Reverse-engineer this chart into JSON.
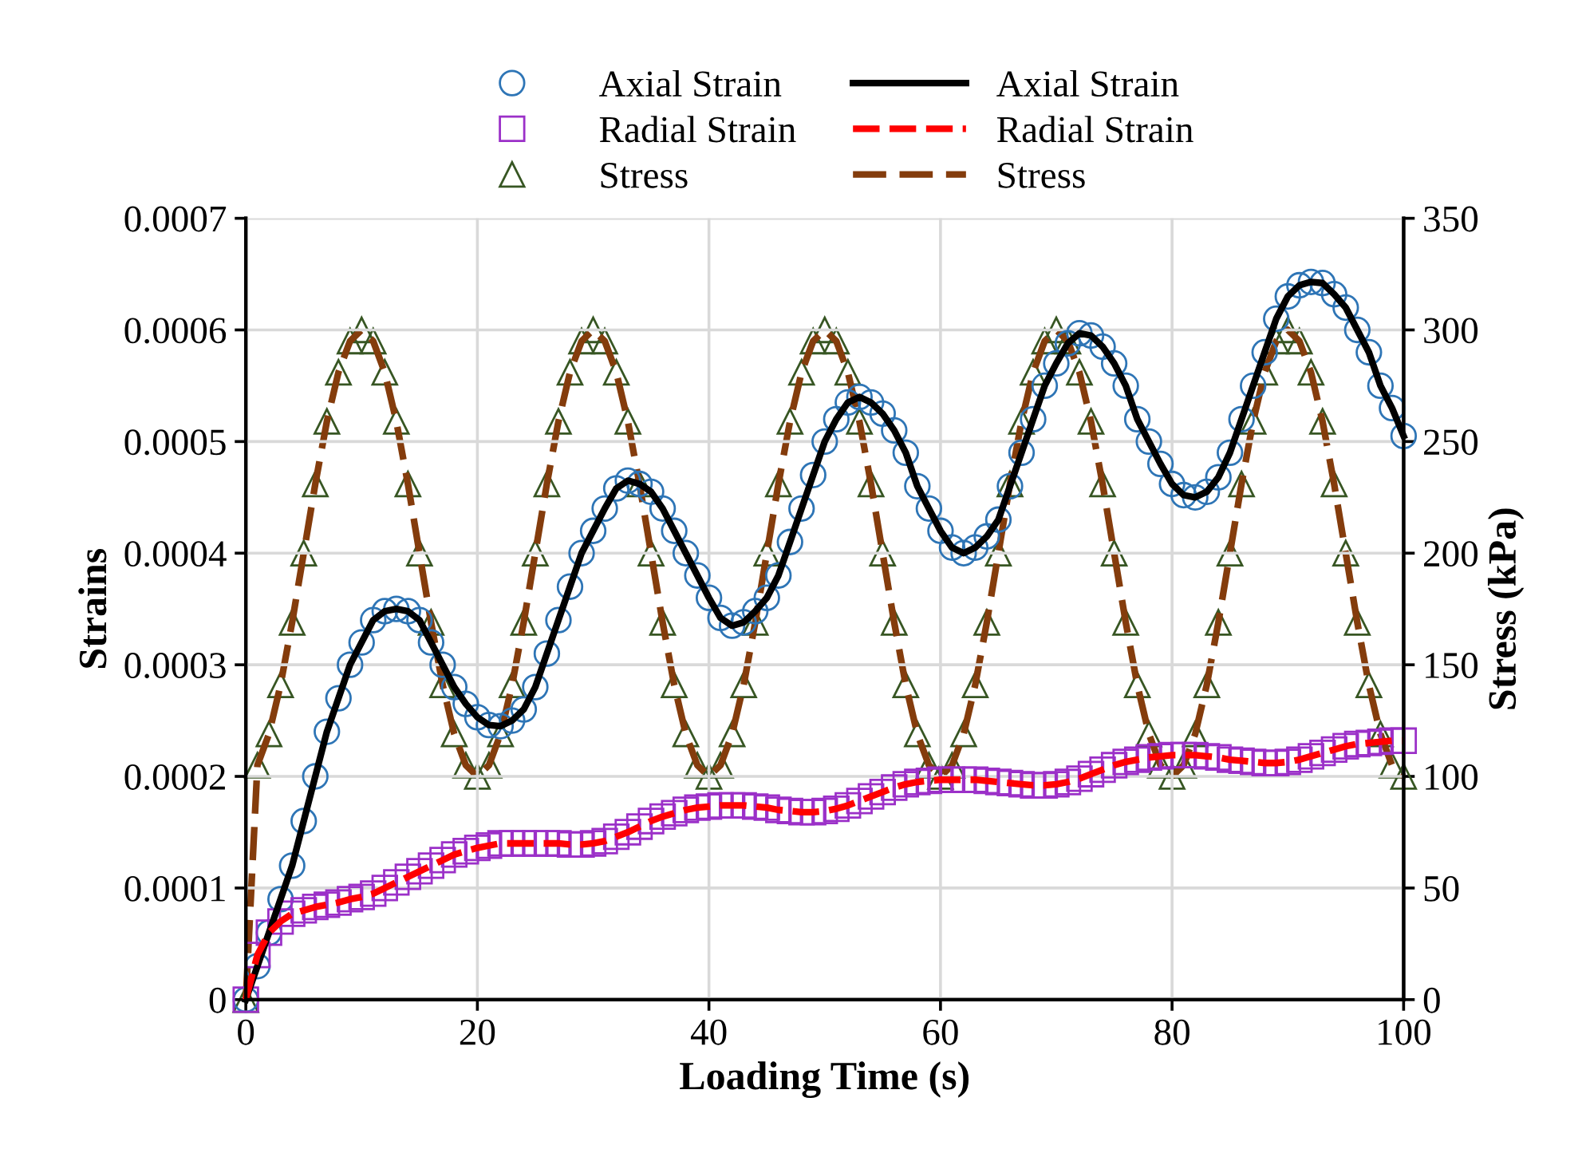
{
  "chart_data": {
    "type": "scatter",
    "xlabel": "Loading Time (s)",
    "ylabel": "Strains",
    "y2label": "Stress (kPa)",
    "x": [
      0,
      1,
      2,
      3,
      4,
      5,
      6,
      7,
      8,
      9,
      10,
      11,
      12,
      13,
      14,
      15,
      16,
      17,
      18,
      19,
      20,
      21,
      22,
      23,
      24,
      25,
      26,
      27,
      28,
      29,
      30,
      31,
      32,
      33,
      34,
      35,
      36,
      37,
      38,
      39,
      40,
      41,
      42,
      43,
      44,
      45,
      46,
      47,
      48,
      49,
      50,
      51,
      52,
      53,
      54,
      55,
      56,
      57,
      58,
      59,
      60,
      61,
      62,
      63,
      64,
      65,
      66,
      67,
      68,
      69,
      70,
      71,
      72,
      73,
      74,
      75,
      76,
      77,
      78,
      79,
      80,
      81,
      82,
      83,
      84,
      85,
      86,
      87,
      88,
      89,
      90,
      91,
      92,
      93,
      94,
      95,
      96,
      97,
      98,
      99,
      100
    ],
    "xlim": [
      0,
      100
    ],
    "xticks": [
      0,
      20,
      40,
      60,
      80,
      100
    ],
    "ylim": [
      0,
      0.0007
    ],
    "yticks": [
      0,
      0.0001,
      0.0002,
      0.0003,
      0.0004,
      0.0005,
      0.0006,
      0.0007
    ],
    "y2lim": [
      0,
      350
    ],
    "y2ticks": [
      0,
      50,
      100,
      150,
      200,
      250,
      300,
      350
    ],
    "grid": true,
    "legend": "top",
    "series": [
      {
        "name": "Axial Strain",
        "marker": "circle",
        "color": "#2e75b6",
        "values": [
          0,
          3e-05,
          6e-05,
          9e-05,
          0.00012,
          0.00016,
          0.0002,
          0.00024,
          0.00027,
          0.0003,
          0.00032,
          0.00034,
          0.000348,
          0.00035,
          0.000348,
          0.00034,
          0.00032,
          0.0003,
          0.00028,
          0.000265,
          0.000253,
          0.000246,
          0.000245,
          0.00025,
          0.00026,
          0.00028,
          0.00031,
          0.00034,
          0.00037,
          0.0004,
          0.00042,
          0.00044,
          0.000458,
          0.000465,
          0.000462,
          0.000455,
          0.00044,
          0.00042,
          0.0004,
          0.00038,
          0.00036,
          0.000342,
          0.000335,
          0.000338,
          0.000348,
          0.00036,
          0.00038,
          0.00041,
          0.00044,
          0.00047,
          0.0005,
          0.00052,
          0.000535,
          0.00054,
          0.000535,
          0.000525,
          0.00051,
          0.00049,
          0.00046,
          0.00044,
          0.00042,
          0.000405,
          0.0004,
          0.000405,
          0.000415,
          0.00043,
          0.00046,
          0.00049,
          0.00052,
          0.00055,
          0.00057,
          0.000588,
          0.000597,
          0.000595,
          0.000585,
          0.00057,
          0.00055,
          0.00052,
          0.0005,
          0.00048,
          0.000462,
          0.000452,
          0.00045,
          0.000455,
          0.000468,
          0.00049,
          0.00052,
          0.00055,
          0.00058,
          0.00061,
          0.00063,
          0.00064,
          0.000643,
          0.000642,
          0.000632,
          0.00062,
          0.0006,
          0.00058,
          0.00055,
          0.00053,
          0.000505
        ]
      },
      {
        "name": "Radial Strain",
        "marker": "square",
        "color": "#9b30c8",
        "values": [
          0,
          4e-05,
          6e-05,
          7e-05,
          7.7e-05,
          8e-05,
          8.3e-05,
          8.5e-05,
          8.7e-05,
          9e-05,
          9.2e-05,
          9.5e-05,
          0.0001,
          0.000105,
          0.00011,
          0.000115,
          0.00012,
          0.000125,
          0.00013,
          0.000133,
          0.000136,
          0.000138,
          0.00014,
          0.00014,
          0.00014,
          0.00014,
          0.00014,
          0.00014,
          0.000139,
          0.000139,
          0.00014,
          0.000142,
          0.000146,
          0.00015,
          0.000155,
          0.00016,
          0.000164,
          0.000167,
          0.00017,
          0.000172,
          0.000173,
          0.000174,
          0.000174,
          0.000174,
          0.000173,
          0.000172,
          0.00017,
          0.000169,
          0.000168,
          0.000168,
          0.000169,
          0.000171,
          0.000174,
          0.000178,
          0.000182,
          0.000186,
          0.00019,
          0.000193,
          0.000195,
          0.000196,
          0.000197,
          0.000197,
          0.000197,
          0.000197,
          0.000196,
          0.000195,
          0.000194,
          0.000193,
          0.000192,
          0.000192,
          0.000193,
          0.000195,
          0.000198,
          0.000202,
          0.000206,
          0.00021,
          0.000213,
          0.000215,
          0.000217,
          0.000218,
          0.000219,
          0.000219,
          0.000219,
          0.000218,
          0.000217,
          0.000215,
          0.000214,
          0.000213,
          0.000212,
          0.000212,
          0.000213,
          0.000215,
          0.000218,
          0.000221,
          0.000224,
          0.000227,
          0.000229,
          0.00023,
          0.000231,
          0.000232,
          0.000232
        ]
      },
      {
        "name": "Stress",
        "marker": "triangle",
        "color": "#375623",
        "axis": "y2",
        "values": [
          0,
          105,
          119,
          141,
          169,
          200,
          231,
          259,
          281,
          295,
          300,
          295,
          281,
          259,
          231,
          200,
          169,
          141,
          119,
          105,
          100,
          105,
          119,
          141,
          169,
          200,
          231,
          259,
          281,
          295,
          300,
          295,
          281,
          259,
          231,
          200,
          169,
          141,
          119,
          105,
          100,
          105,
          119,
          141,
          169,
          200,
          231,
          259,
          281,
          295,
          300,
          295,
          281,
          259,
          231,
          200,
          169,
          141,
          119,
          105,
          100,
          105,
          119,
          141,
          169,
          200,
          231,
          259,
          281,
          295,
          300,
          295,
          281,
          259,
          231,
          200,
          169,
          141,
          119,
          105,
          100,
          105,
          119,
          141,
          169,
          200,
          231,
          259,
          281,
          295,
          300,
          295,
          281,
          259,
          231,
          200,
          169,
          141,
          119,
          105,
          100
        ]
      },
      {
        "name": "Axial Strain",
        "type": "line",
        "line_style": "solid",
        "color": "#000000",
        "values": [
          0,
          3e-05,
          6e-05,
          9e-05,
          0.00012,
          0.00016,
          0.0002,
          0.00024,
          0.00027,
          0.0003,
          0.00032,
          0.00034,
          0.000348,
          0.00035,
          0.000348,
          0.00034,
          0.00032,
          0.0003,
          0.00028,
          0.000265,
          0.000253,
          0.000246,
          0.000245,
          0.00025,
          0.00026,
          0.00028,
          0.00031,
          0.00034,
          0.00037,
          0.0004,
          0.00042,
          0.00044,
          0.000458,
          0.000465,
          0.000462,
          0.000455,
          0.00044,
          0.00042,
          0.0004,
          0.00038,
          0.00036,
          0.000342,
          0.000335,
          0.000338,
          0.000348,
          0.00036,
          0.00038,
          0.00041,
          0.00044,
          0.00047,
          0.0005,
          0.00052,
          0.000535,
          0.00054,
          0.000535,
          0.000525,
          0.00051,
          0.00049,
          0.00046,
          0.00044,
          0.00042,
          0.000405,
          0.0004,
          0.000405,
          0.000415,
          0.00043,
          0.00046,
          0.00049,
          0.00052,
          0.00055,
          0.00057,
          0.000588,
          0.000597,
          0.000595,
          0.000585,
          0.00057,
          0.00055,
          0.00052,
          0.0005,
          0.00048,
          0.000462,
          0.000452,
          0.00045,
          0.000455,
          0.000468,
          0.00049,
          0.00052,
          0.00055,
          0.00058,
          0.00061,
          0.00063,
          0.00064,
          0.000643,
          0.000642,
          0.000632,
          0.00062,
          0.0006,
          0.00058,
          0.00055,
          0.00053,
          0.000505
        ]
      },
      {
        "name": "Radial Strain",
        "type": "line",
        "line_style": "dashed",
        "color": "#ff0000",
        "values": [
          0,
          4e-05,
          6e-05,
          7e-05,
          7.7e-05,
          8e-05,
          8.3e-05,
          8.5e-05,
          8.7e-05,
          9e-05,
          9.2e-05,
          9.5e-05,
          0.0001,
          0.000105,
          0.00011,
          0.000115,
          0.00012,
          0.000125,
          0.00013,
          0.000133,
          0.000136,
          0.000138,
          0.00014,
          0.00014,
          0.00014,
          0.00014,
          0.00014,
          0.00014,
          0.000139,
          0.000139,
          0.00014,
          0.000142,
          0.000146,
          0.00015,
          0.000155,
          0.00016,
          0.000164,
          0.000167,
          0.00017,
          0.000172,
          0.000173,
          0.000174,
          0.000174,
          0.000174,
          0.000173,
          0.000172,
          0.00017,
          0.000169,
          0.000168,
          0.000168,
          0.000169,
          0.000171,
          0.000174,
          0.000178,
          0.000182,
          0.000186,
          0.00019,
          0.000193,
          0.000195,
          0.000196,
          0.000197,
          0.000197,
          0.000197,
          0.000197,
          0.000196,
          0.000195,
          0.000194,
          0.000193,
          0.000192,
          0.000192,
          0.000193,
          0.000195,
          0.000198,
          0.000202,
          0.000206,
          0.00021,
          0.000213,
          0.000215,
          0.000217,
          0.000218,
          0.000219,
          0.000219,
          0.000219,
          0.000218,
          0.000217,
          0.000215,
          0.000214,
          0.000213,
          0.000212,
          0.000212,
          0.000213,
          0.000215,
          0.000218,
          0.000221,
          0.000224,
          0.000227,
          0.000229,
          0.00023,
          0.000231,
          0.000232,
          0.000232
        ]
      },
      {
        "name": "Stress",
        "type": "line",
        "line_style": "dashed",
        "color": "#843c0c",
        "axis": "y2",
        "values": [
          0,
          105,
          119,
          141,
          169,
          200,
          231,
          259,
          281,
          295,
          300,
          295,
          281,
          259,
          231,
          200,
          169,
          141,
          119,
          105,
          100,
          105,
          119,
          141,
          169,
          200,
          231,
          259,
          281,
          295,
          300,
          295,
          281,
          259,
          231,
          200,
          169,
          141,
          119,
          105,
          100,
          105,
          119,
          141,
          169,
          200,
          231,
          259,
          281,
          295,
          300,
          295,
          281,
          259,
          231,
          200,
          169,
          141,
          119,
          105,
          100,
          105,
          119,
          141,
          169,
          200,
          231,
          259,
          281,
          295,
          300,
          295,
          281,
          259,
          231,
          200,
          169,
          141,
          119,
          105,
          100,
          105,
          119,
          141,
          169,
          200,
          231,
          259,
          281,
          295,
          300,
          295,
          281,
          259,
          231,
          200,
          169,
          141,
          119,
          105,
          100
        ]
      }
    ]
  }
}
